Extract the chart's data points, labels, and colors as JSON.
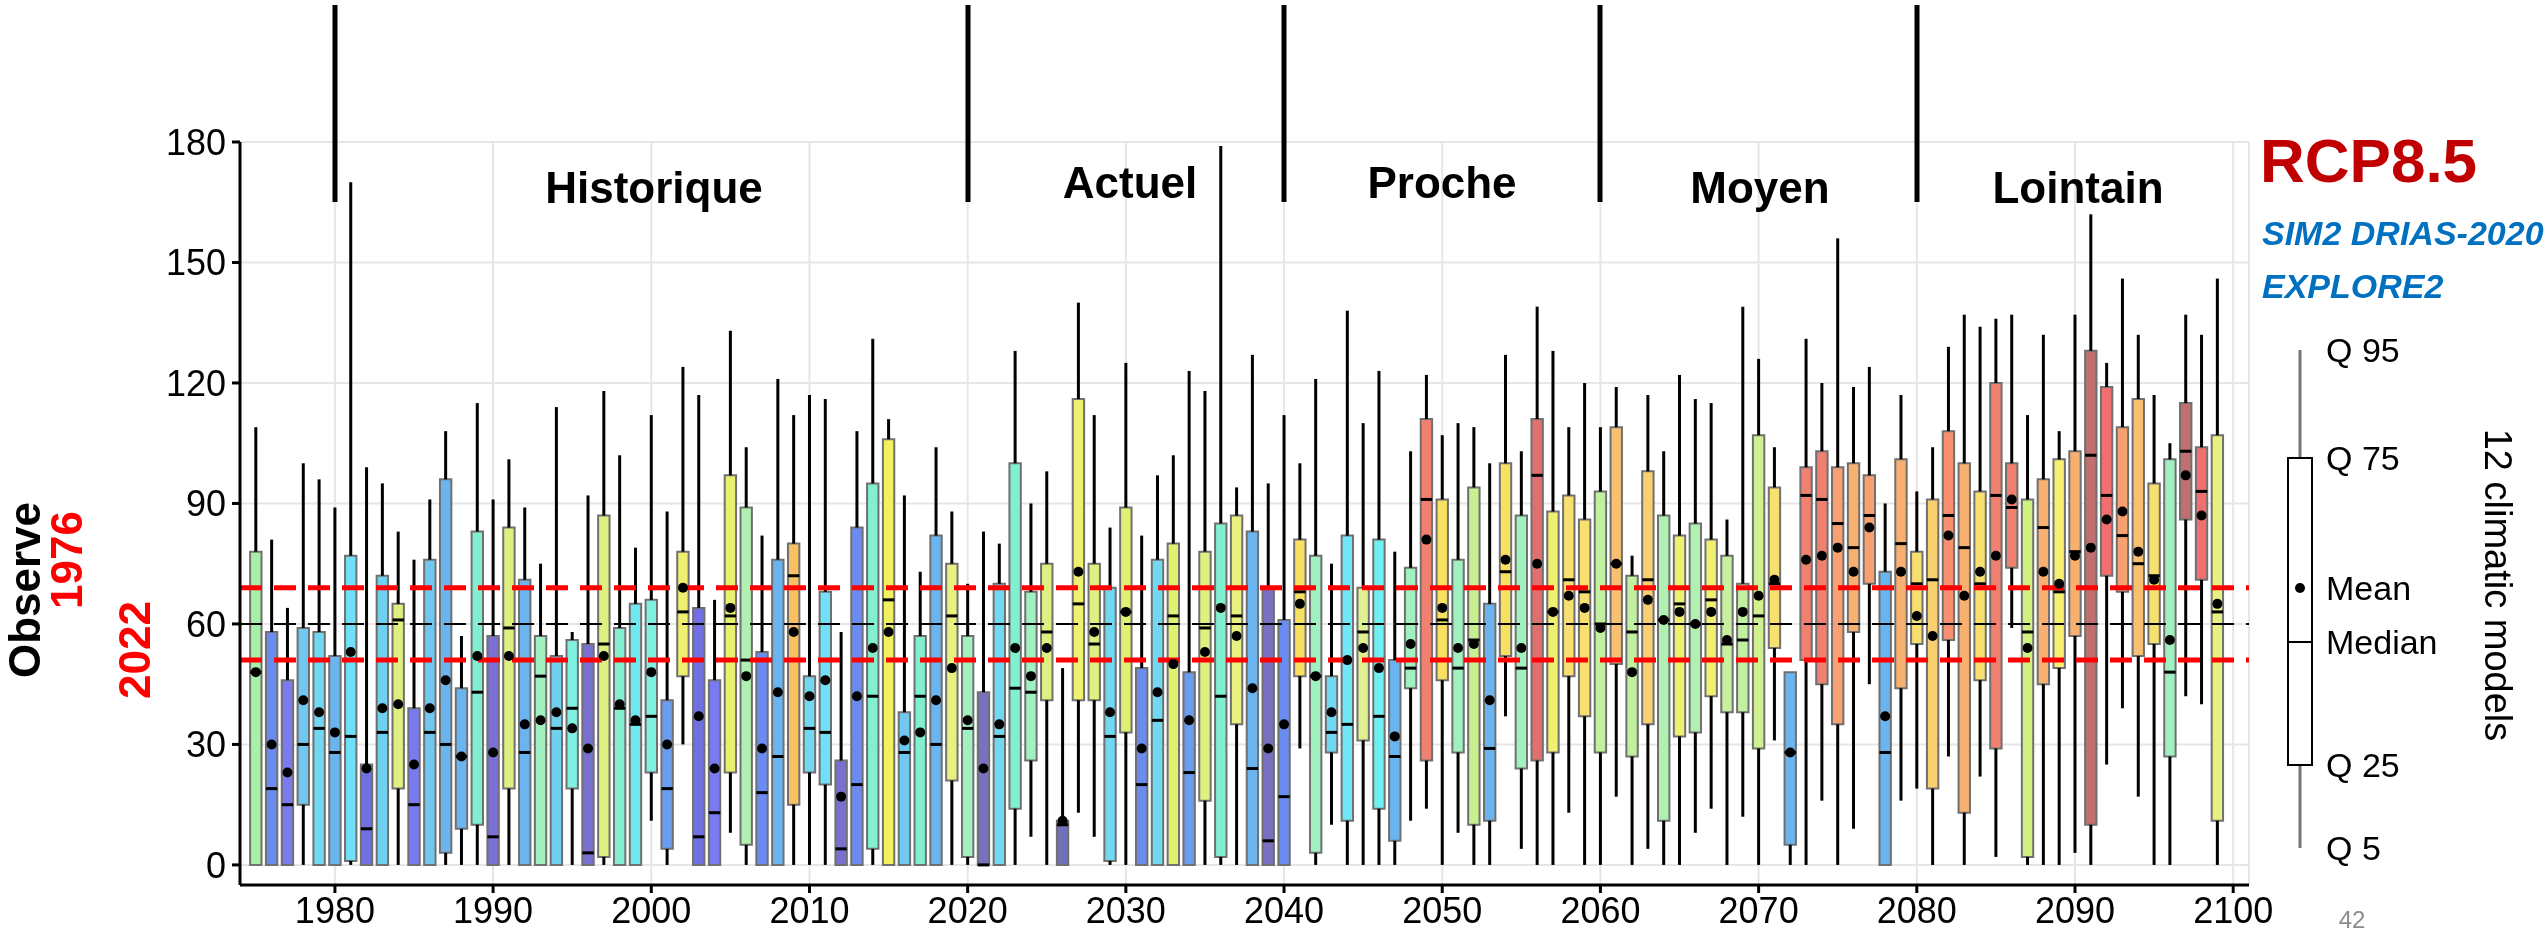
{
  "chart_data": {
    "type": "box",
    "title": "RCP8.5",
    "ylabel": "Observe",
    "annotations": [
      "1976",
      "2022",
      "SIM2 DRIAS-2020",
      "EXPLORE2",
      "Q 95",
      "Q 75",
      "Mean",
      "Median",
      "Q 25",
      "Q 5",
      "42",
      "12 climatic models",
      "Historique",
      "Actuel",
      "Proche",
      "Moyen",
      "Lointain"
    ],
    "x": [
      1975,
      1976,
      1977,
      1978,
      1979,
      1980,
      1981,
      1982,
      1983,
      1984,
      1985,
      1986,
      1987,
      1988,
      1989,
      1990,
      1991,
      1992,
      1993,
      1994,
      1995,
      1996,
      1997,
      1998,
      1999,
      2000,
      2001,
      2002,
      2003,
      2004,
      2005,
      2006,
      2007,
      2008,
      2009,
      2010,
      2011,
      2012,
      2013,
      2014,
      2015,
      2016,
      2017,
      2018,
      2019,
      2020,
      2021,
      2022,
      2023,
      2024,
      2025,
      2026,
      2027,
      2028,
      2029,
      2030,
      2031,
      2032,
      2033,
      2034,
      2035,
      2036,
      2037,
      2038,
      2039,
      2040,
      2041,
      2042,
      2043,
      2044,
      2045,
      2046,
      2047,
      2048,
      2049,
      2050,
      2051,
      2052,
      2053,
      2054,
      2055,
      2056,
      2057,
      2058,
      2059,
      2060,
      2061,
      2062,
      2063,
      2064,
      2065,
      2066,
      2067,
      2068,
      2069,
      2070,
      2071,
      2072,
      2073,
      2074,
      2075,
      2076,
      2077,
      2078,
      2079,
      2080,
      2081,
      2082,
      2083,
      2084,
      2085,
      2086,
      2087,
      2088,
      2089,
      2090,
      2091,
      2092,
      2093,
      2094,
      2095,
      2096,
      2097,
      2098,
      2099
    ],
    "boxes": [
      {
        "low": 0,
        "q1": 0,
        "median": 48,
        "q3": 78,
        "high": 109,
        "mean": 48
      },
      {
        "low": 0,
        "q1": 0,
        "median": 19,
        "q3": 58,
        "high": 81,
        "mean": 30
      },
      {
        "low": 0,
        "q1": 0,
        "median": 15,
        "q3": 46,
        "high": 64,
        "mean": 23
      },
      {
        "low": 0,
        "q1": 15,
        "median": 30,
        "q3": 59,
        "high": 100,
        "mean": 41
      },
      {
        "low": 0,
        "q1": 0,
        "median": 34,
        "q3": 58,
        "high": 96,
        "mean": 38
      },
      {
        "low": 0,
        "q1": 0,
        "median": 28,
        "q3": 52,
        "high": 89,
        "mean": 33
      },
      {
        "low": 0,
        "q1": 1,
        "median": 32,
        "q3": 77,
        "high": 170,
        "mean": 53
      },
      {
        "low": 0,
        "q1": 0,
        "median": 9,
        "q3": 25,
        "high": 99,
        "mean": 24
      },
      {
        "low": 0,
        "q1": 0,
        "median": 33,
        "q3": 72,
        "high": 95,
        "mean": 39
      },
      {
        "low": 0,
        "q1": 19,
        "median": 61,
        "q3": 65,
        "high": 83,
        "mean": 40
      },
      {
        "low": 0,
        "q1": 0,
        "median": 15,
        "q3": 39,
        "high": 76,
        "mean": 25
      },
      {
        "low": 0,
        "q1": 0,
        "median": 33,
        "q3": 76,
        "high": 91,
        "mean": 39
      },
      {
        "low": 0,
        "q1": 3,
        "median": 30,
        "q3": 96,
        "high": 108,
        "mean": 46
      },
      {
        "low": 0,
        "q1": 9,
        "median": 27,
        "q3": 44,
        "high": 57,
        "mean": 27
      },
      {
        "low": 0,
        "q1": 10,
        "median": 43,
        "q3": 83,
        "high": 115,
        "mean": 52
      },
      {
        "low": 0,
        "q1": 0,
        "median": 7,
        "q3": 57,
        "high": 91,
        "mean": 28
      },
      {
        "low": 0,
        "q1": 19,
        "median": 59,
        "q3": 84,
        "high": 101,
        "mean": 52
      },
      {
        "low": 0,
        "q1": 0,
        "median": 28,
        "q3": 71,
        "high": 89,
        "mean": 35
      },
      {
        "low": 0,
        "q1": 0,
        "median": 47,
        "q3": 57,
        "high": 75,
        "mean": 36
      },
      {
        "low": 0,
        "q1": 0,
        "median": 34,
        "q3": 52,
        "high": 114,
        "mean": 38
      },
      {
        "low": 0,
        "q1": 19,
        "median": 39,
        "q3": 56,
        "high": 58,
        "mean": 34
      },
      {
        "low": 0,
        "q1": 0,
        "median": 3,
        "q3": 55,
        "high": 92,
        "mean": 29
      },
      {
        "low": 0,
        "q1": 2,
        "median": 55,
        "q3": 87,
        "high": 118,
        "mean": 52
      },
      {
        "low": 0,
        "q1": 0,
        "median": 39,
        "q3": 59,
        "high": 102,
        "mean": 40
      },
      {
        "low": 0,
        "q1": 0,
        "median": 35,
        "q3": 65,
        "high": 79,
        "mean": 36
      },
      {
        "low": 11,
        "q1": 23,
        "median": 37,
        "q3": 66,
        "high": 112,
        "mean": 48
      },
      {
        "low": 0,
        "q1": 4,
        "median": 19,
        "q3": 41,
        "high": 88,
        "mean": 30
      },
      {
        "low": 30,
        "q1": 47,
        "median": 63,
        "q3": 78,
        "high": 124,
        "mean": 69
      },
      {
        "low": 0,
        "q1": 0,
        "median": 7,
        "q3": 64,
        "high": 117,
        "mean": 37
      },
      {
        "low": 0,
        "q1": 0,
        "median": 13,
        "q3": 46,
        "high": 66,
        "mean": 24
      },
      {
        "low": 8,
        "q1": 23,
        "median": 62,
        "q3": 97,
        "high": 133,
        "mean": 64
      },
      {
        "low": 0,
        "q1": 5,
        "median": 51,
        "q3": 89,
        "high": 104,
        "mean": 47
      },
      {
        "low": 0,
        "q1": 0,
        "median": 18,
        "q3": 53,
        "high": 82,
        "mean": 29
      },
      {
        "low": 0,
        "q1": 0,
        "median": 27,
        "q3": 76,
        "high": 121,
        "mean": 43
      },
      {
        "low": 0,
        "q1": 15,
        "median": 72,
        "q3": 80,
        "high": 112,
        "mean": 58
      },
      {
        "low": 0,
        "q1": 23,
        "median": 34,
        "q3": 47,
        "high": 117,
        "mean": 42
      },
      {
        "low": 0,
        "q1": 20,
        "median": 33,
        "q3": 68,
        "high": 116,
        "mean": 46
      },
      {
        "low": 0,
        "q1": 0,
        "median": 4,
        "q3": 26,
        "high": 58,
        "mean": 17
      },
      {
        "low": 0,
        "q1": 0,
        "median": 20,
        "q3": 84,
        "high": 108,
        "mean": 42
      },
      {
        "low": 0,
        "q1": 4,
        "median": 42,
        "q3": 95,
        "high": 131,
        "mean": 54
      },
      {
        "low": 0,
        "q1": 0,
        "median": 66,
        "q3": 106,
        "high": 111,
        "mean": 58
      },
      {
        "low": 0,
        "q1": 0,
        "median": 28,
        "q3": 38,
        "high": 92,
        "mean": 31
      },
      {
        "low": 0,
        "q1": 0,
        "median": 42,
        "q3": 57,
        "high": 73,
        "mean": 33
      },
      {
        "low": 0,
        "q1": 0,
        "median": 30,
        "q3": 82,
        "high": 104,
        "mean": 41
      },
      {
        "low": 0,
        "q1": 21,
        "median": 62,
        "q3": 75,
        "high": 88,
        "mean": 49
      },
      {
        "low": 0,
        "q1": 2,
        "median": 34,
        "q3": 57,
        "high": 70,
        "mean": 36
      },
      {
        "low": 0,
        "q1": 0,
        "median": 0,
        "q3": 43,
        "high": 83,
        "mean": 24
      },
      {
        "low": 0,
        "q1": 0,
        "median": 32,
        "q3": 70,
        "high": 80,
        "mean": 35
      },
      {
        "low": 0,
        "q1": 14,
        "median": 44,
        "q3": 100,
        "high": 128,
        "mean": 54
      },
      {
        "low": 7,
        "q1": 26,
        "median": 43,
        "q3": 68,
        "high": 90,
        "mean": 47
      },
      {
        "low": 0,
        "q1": 41,
        "median": 58,
        "q3": 75,
        "high": 98,
        "mean": 54
      },
      {
        "low": 0,
        "q1": 0,
        "median": 10,
        "q3": 11,
        "high": 49,
        "mean": 11
      },
      {
        "low": 13,
        "q1": 41,
        "median": 65,
        "q3": 116,
        "high": 140,
        "mean": 73
      },
      {
        "low": 7,
        "q1": 41,
        "median": 55,
        "q3": 75,
        "high": 112,
        "mean": 58
      },
      {
        "low": 0,
        "q1": 1,
        "median": 32,
        "q3": 69,
        "high": 84,
        "mean": 38
      },
      {
        "low": 0,
        "q1": 33,
        "median": 63,
        "q3": 89,
        "high": 125,
        "mean": 63
      },
      {
        "low": 0,
        "q1": 0,
        "median": 20,
        "q3": 49,
        "high": 82,
        "mean": 29
      },
      {
        "low": 0,
        "q1": 0,
        "median": 36,
        "q3": 76,
        "high": 97,
        "mean": 43
      },
      {
        "low": 0,
        "q1": 0,
        "median": 62,
        "q3": 80,
        "high": 102,
        "mean": 50
      },
      {
        "low": 0,
        "q1": 0,
        "median": 23,
        "q3": 48,
        "high": 123,
        "mean": 36
      },
      {
        "low": 0,
        "q1": 16,
        "median": 59,
        "q3": 78,
        "high": 118,
        "mean": 53
      },
      {
        "low": 0,
        "q1": 2,
        "median": 42,
        "q3": 85,
        "high": 179,
        "mean": 64
      },
      {
        "low": 0,
        "q1": 35,
        "median": 62,
        "q3": 87,
        "high": 94,
        "mean": 57
      },
      {
        "low": 0,
        "q1": 0,
        "median": 24,
        "q3": 83,
        "high": 127,
        "mean": 44
      },
      {
        "low": 0,
        "q1": 0,
        "median": 6,
        "q3": 69,
        "high": 95,
        "mean": 29
      },
      {
        "low": 0,
        "q1": 0,
        "median": 17,
        "q3": 61,
        "high": 112,
        "mean": 35
      },
      {
        "low": 29,
        "q1": 47,
        "median": 68,
        "q3": 81,
        "high": 100,
        "mean": 65
      },
      {
        "low": 0,
        "q1": 3,
        "median": 47,
        "q3": 77,
        "high": 121,
        "mean": 47
      },
      {
        "low": 10,
        "q1": 28,
        "median": 33,
        "q3": 47,
        "high": 75,
        "mean": 38
      },
      {
        "low": 0,
        "q1": 11,
        "median": 35,
        "q3": 82,
        "high": 138,
        "mean": 51
      },
      {
        "low": 0,
        "q1": 31,
        "median": 58,
        "q3": 69,
        "high": 110,
        "mean": 54
      },
      {
        "low": 0,
        "q1": 14,
        "median": 37,
        "q3": 81,
        "high": 123,
        "mean": 49
      },
      {
        "low": 0,
        "q1": 6,
        "median": 27,
        "q3": 51,
        "high": 78,
        "mean": 32
      },
      {
        "low": 11,
        "q1": 44,
        "median": 49,
        "q3": 74,
        "high": 103,
        "mean": 55
      },
      {
        "low": 14,
        "q1": 26,
        "median": 91,
        "q3": 111,
        "high": 122,
        "mean": 81
      },
      {
        "low": 0,
        "q1": 46,
        "median": 61,
        "q3": 91,
        "high": 107,
        "mean": 64
      },
      {
        "low": 8,
        "q1": 28,
        "median": 49,
        "q3": 76,
        "high": 110,
        "mean": 54
      },
      {
        "low": 0,
        "q1": 10,
        "median": 56,
        "q3": 94,
        "high": 109,
        "mean": 55
      },
      {
        "low": 0,
        "q1": 11,
        "median": 29,
        "q3": 65,
        "high": 100,
        "mean": 41
      },
      {
        "low": 37,
        "q1": 52,
        "median": 73,
        "q3": 100,
        "high": 127,
        "mean": 76
      },
      {
        "low": 4,
        "q1": 24,
        "median": 49,
        "q3": 87,
        "high": 103,
        "mean": 54
      },
      {
        "low": 0,
        "q1": 26,
        "median": 97,
        "q3": 111,
        "high": 139,
        "mean": 75
      },
      {
        "low": 0,
        "q1": 28,
        "median": 63,
        "q3": 88,
        "high": 128,
        "mean": 63
      },
      {
        "low": 13,
        "q1": 47,
        "median": 71,
        "q3": 92,
        "high": 109,
        "mean": 67
      },
      {
        "low": 0,
        "q1": 37,
        "median": 68,
        "q3": 86,
        "high": 120,
        "mean": 64
      },
      {
        "low": 0,
        "q1": 28,
        "median": 60,
        "q3": 93,
        "high": 109,
        "mean": 59
      },
      {
        "low": 17,
        "q1": 50,
        "median": 75,
        "q3": 109,
        "high": 119,
        "mean": 75
      },
      {
        "low": 0,
        "q1": 27,
        "median": 58,
        "q3": 72,
        "high": 77,
        "mean": 48
      },
      {
        "low": 4,
        "q1": 35,
        "median": 71,
        "q3": 98,
        "high": 117,
        "mean": 66
      },
      {
        "low": 0,
        "q1": 11,
        "median": 61,
        "q3": 87,
        "high": 103,
        "mean": 61
      },
      {
        "low": 0,
        "q1": 32,
        "median": 65,
        "q3": 82,
        "high": 122,
        "mean": 63
      },
      {
        "low": 8,
        "q1": 33,
        "median": 60,
        "q3": 85,
        "high": 116,
        "mean": 60
      },
      {
        "low": 14,
        "q1": 42,
        "median": 66,
        "q3": 81,
        "high": 115,
        "mean": 63
      },
      {
        "low": 0,
        "q1": 38,
        "median": 55,
        "q3": 77,
        "high": 86,
        "mean": 56
      },
      {
        "low": 12,
        "q1": 38,
        "median": 56,
        "q3": 70,
        "high": 139,
        "mean": 63
      },
      {
        "low": 0,
        "q1": 29,
        "median": 62,
        "q3": 107,
        "high": 126,
        "mean": 67
      },
      {
        "low": 31,
        "q1": 54,
        "median": 70,
        "q3": 94,
        "high": 104,
        "mean": 71
      },
      {
        "low": 0,
        "q1": 5,
        "median": 28,
        "q3": 48,
        "high": 48,
        "mean": 28
      },
      {
        "low": 0,
        "q1": 51,
        "median": 92,
        "q3": 99,
        "high": 131,
        "mean": 76
      },
      {
        "low": 16,
        "q1": 45,
        "median": 91,
        "q3": 103,
        "high": 120,
        "mean": 77
      },
      {
        "low": 0,
        "q1": 35,
        "median": 85,
        "q3": 99,
        "high": 156,
        "mean": 79
      },
      {
        "low": 9,
        "q1": 58,
        "median": 79,
        "q3": 100,
        "high": 119,
        "mean": 73
      },
      {
        "low": 45,
        "q1": 70,
        "median": 87,
        "q3": 97,
        "high": 124,
        "mean": 84
      },
      {
        "low": 0,
        "q1": 0,
        "median": 28,
        "q3": 73,
        "high": 90,
        "mean": 37
      },
      {
        "low": 16,
        "q1": 44,
        "median": 80,
        "q3": 101,
        "high": 117,
        "mean": 73
      },
      {
        "low": 19,
        "q1": 55,
        "median": 70,
        "q3": 78,
        "high": 93,
        "mean": 62
      },
      {
        "low": 0,
        "q1": 19,
        "median": 71,
        "q3": 91,
        "high": 104,
        "mean": 57
      },
      {
        "low": 27,
        "q1": 56,
        "median": 87,
        "q3": 108,
        "high": 129,
        "mean": 82
      },
      {
        "low": 0,
        "q1": 13,
        "median": 79,
        "q3": 100,
        "high": 137,
        "mean": 67
      },
      {
        "low": 22,
        "q1": 46,
        "median": 70,
        "q3": 93,
        "high": 134,
        "mean": 73
      },
      {
        "low": 2,
        "q1": 29,
        "median": 92,
        "q3": 120,
        "high": 136,
        "mean": 77
      },
      {
        "low": 59,
        "q1": 74,
        "median": 89,
        "q3": 100,
        "high": 137,
        "mean": 91
      },
      {
        "low": 0,
        "q1": 2,
        "median": 58,
        "q3": 91,
        "high": 112,
        "mean": 54
      },
      {
        "low": 0,
        "q1": 45,
        "median": 84,
        "q3": 96,
        "high": 132,
        "mean": 73
      },
      {
        "low": 0,
        "q1": 49,
        "median": 68,
        "q3": 101,
        "high": 108,
        "mean": 70
      },
      {
        "low": 3,
        "q1": 57,
        "median": 78,
        "q3": 103,
        "high": 137,
        "mean": 77
      },
      {
        "low": 0,
        "q1": 10,
        "median": 102,
        "q3": 128,
        "high": 162,
        "mean": 79
      },
      {
        "low": 25,
        "q1": 72,
        "median": 92,
        "q3": 119,
        "high": 125,
        "mean": 86
      },
      {
        "low": 39,
        "q1": 68,
        "median": 82,
        "q3": 109,
        "high": 146,
        "mean": 88
      },
      {
        "low": 17,
        "q1": 52,
        "median": 75,
        "q3": 116,
        "high": 132,
        "mean": 78
      },
      {
        "low": 0,
        "q1": 55,
        "median": 72,
        "q3": 95,
        "high": 117,
        "mean": 71
      },
      {
        "low": 0,
        "q1": 27,
        "median": 48,
        "q3": 101,
        "high": 105,
        "mean": 56
      },
      {
        "low": 42,
        "q1": 86,
        "median": 103,
        "q3": 115,
        "high": 137,
        "mean": 97
      },
      {
        "low": 40,
        "q1": 71,
        "median": 93,
        "q3": 104,
        "high": 132,
        "mean": 87
      },
      {
        "low": 0,
        "q1": 11,
        "median": 63,
        "q3": 107,
        "high": 146,
        "mean": 65
      }
    ],
    "colors": [
      "#a8f0a8",
      "#6a8cf0",
      "#7b7bf0",
      "#70c8f0",
      "#70d8f0",
      "#6ab4f0",
      "#70e0f8",
      "#7070e0",
      "#70d0f0",
      "#e0f080",
      "#7a7af0",
      "#70c8f0",
      "#6ab4f0",
      "#6ab4f0",
      "#80f0d0",
      "#7a70d8",
      "#e0f080",
      "#6ab4f0",
      "#a0f0c0",
      "#70d0f0",
      "#80f0e0",
      "#7a70d0",
      "#e0f080",
      "#80f0d0",
      "#70e8f0",
      "#80f0e0",
      "#6a9cf0",
      "#f0f070",
      "#7070e0",
      "#7a7af0",
      "#e8f070",
      "#b0f0b0",
      "#6a8cf0",
      "#6ab4f0",
      "#f8c060",
      "#70d8f0",
      "#70e0f8",
      "#7a70d0",
      "#6a8cf0",
      "#80f0d0",
      "#f0f060",
      "#70c8f0",
      "#80f0d0",
      "#6ab4f0",
      "#e8f080",
      "#a0f0c0",
      "#7a70c0",
      "#70d8f0",
      "#80f0d0",
      "#a0f0c0",
      "#e0f080",
      "#7070b8",
      "#f0f070",
      "#e0f080",
      "#70d8f0",
      "#e0f070",
      "#6a8cf0",
      "#70d8f0",
      "#e0f070",
      "#6a9cf0",
      "#e0f080",
      "#80f0d0",
      "#e8f080",
      "#6ab4f0",
      "#7a70c0",
      "#6a8cf0",
      "#f8e060",
      "#a0f0c0",
      "#70d8f0",
      "#70e8f8",
      "#e0f090",
      "#70f0f0",
      "#6ab4f0",
      "#a0f0c0",
      "#f08070",
      "#f8e060",
      "#a0f0c0",
      "#c8f090",
      "#6ab4f0",
      "#f8e060",
      "#a0f0c0",
      "#e07070",
      "#f0f070",
      "#f8e070",
      "#f8e070",
      "#c0f0a0",
      "#f8c070",
      "#c0f0a0",
      "#f8d070",
      "#b0f0b0",
      "#f0f070",
      "#b0f0b0",
      "#f0f070",
      "#c8f0a0",
      "#c0f0a0",
      "#d0f090",
      "#f8e070",
      "#6ab4f0",
      "#f08070",
      "#f08070",
      "#f8a070",
      "#f8b070",
      "#f8a070",
      "#6ab4f0",
      "#f8b070",
      "#f8e070",
      "#f8d070",
      "#f89070",
      "#f8b070",
      "#f8e070",
      "#f08070",
      "#f08070",
      "#d0f080",
      "#f8b070",
      "#f8f070",
      "#f8b070",
      "#c07070",
      "#f07070",
      "#f8a070",
      "#f8c070",
      "#f8e070",
      "#a0f0c0",
      "#c07070",
      "#f07070",
      "#e8f080"
    ],
    "xlim": [
      1974,
      2101
    ],
    "xticks": [
      1980,
      1990,
      2000,
      2010,
      2020,
      2030,
      2040,
      2050,
      2060,
      2070,
      2080,
      2090,
      2100
    ],
    "ylim": [
      -5,
      180
    ],
    "yticks": [
      0,
      30,
      60,
      90,
      120,
      150,
      180
    ],
    "grid": true,
    "ref_lines": [
      {
        "axis": "y",
        "value": 69,
        "color": "#ff0000",
        "line_style": "dashed"
      },
      {
        "axis": "y",
        "value": 51,
        "color": "#ff0000",
        "line_style": "dashed"
      },
      {
        "axis": "y",
        "value": 60,
        "color": "#000000",
        "line_style": "dashed"
      }
    ]
  }
}
